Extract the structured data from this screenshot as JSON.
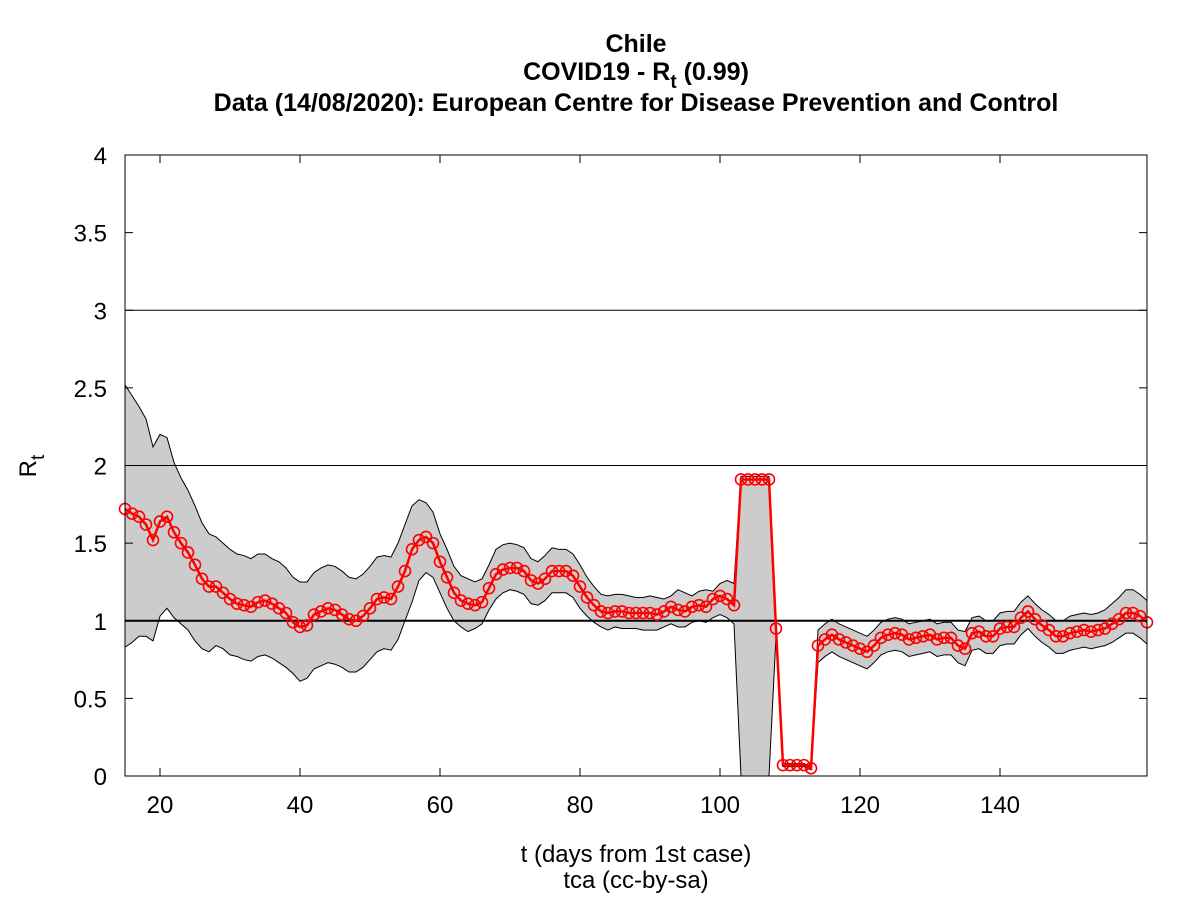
{
  "chart_data": {
    "type": "line",
    "title": "Chile",
    "subtitle": {
      "prefix": "COVID19 - R",
      "sub": "t",
      "suffix": " (0.99)"
    },
    "source": "Data (14/08/2020): European Centre for Disease Prevention and Control",
    "xlabel": "t (days from 1st case)",
    "credit": "tca (cc-by-sa)",
    "ylabel": {
      "main": "R",
      "sub": "t"
    },
    "xlim": [
      15,
      161
    ],
    "ylim": [
      0,
      4
    ],
    "xticks": [
      20,
      40,
      60,
      80,
      100,
      120,
      140
    ],
    "yticks": [
      0,
      0.5,
      1,
      1.5,
      2,
      2.5,
      3,
      3.5,
      4
    ],
    "reference_lines": [
      1,
      2,
      3
    ],
    "band_color": "#cccccc",
    "x": [
      15,
      16,
      17,
      18,
      19,
      20,
      21,
      22,
      23,
      24,
      25,
      26,
      27,
      28,
      29,
      30,
      31,
      32,
      33,
      34,
      35,
      36,
      37,
      38,
      39,
      40,
      41,
      42,
      43,
      44,
      45,
      46,
      47,
      48,
      49,
      50,
      51,
      52,
      53,
      54,
      55,
      56,
      57,
      58,
      59,
      60,
      61,
      62,
      63,
      64,
      65,
      66,
      67,
      68,
      69,
      70,
      71,
      72,
      73,
      74,
      75,
      76,
      77,
      78,
      79,
      80,
      81,
      82,
      83,
      84,
      85,
      86,
      87,
      88,
      89,
      90,
      91,
      92,
      93,
      94,
      95,
      96,
      97,
      98,
      99,
      100,
      101,
      102,
      103,
      104,
      105,
      106,
      107,
      108,
      109,
      110,
      111,
      112,
      113,
      114,
      115,
      116,
      117,
      118,
      119,
      120,
      121,
      122,
      123,
      124,
      125,
      126,
      127,
      128,
      129,
      130,
      131,
      132,
      133,
      134,
      135,
      136,
      137,
      138,
      139,
      140,
      141,
      142,
      143,
      144,
      145,
      146,
      147,
      148,
      149,
      150,
      151,
      152,
      153,
      154,
      155,
      156,
      157,
      158,
      159,
      160,
      161
    ],
    "series": [
      {
        "name": "Rt",
        "color": "#ff0000",
        "values": [
          1.72,
          1.69,
          1.67,
          1.62,
          1.52,
          1.64,
          1.67,
          1.57,
          1.5,
          1.44,
          1.36,
          1.27,
          1.22,
          1.22,
          1.18,
          1.14,
          1.11,
          1.1,
          1.09,
          1.12,
          1.13,
          1.11,
          1.08,
          1.05,
          0.99,
          0.96,
          0.97,
          1.04,
          1.06,
          1.08,
          1.07,
          1.04,
          1.01,
          1.0,
          1.03,
          1.08,
          1.14,
          1.15,
          1.14,
          1.22,
          1.32,
          1.46,
          1.52,
          1.54,
          1.5,
          1.38,
          1.28,
          1.18,
          1.13,
          1.11,
          1.1,
          1.12,
          1.21,
          1.3,
          1.33,
          1.34,
          1.34,
          1.32,
          1.26,
          1.24,
          1.27,
          1.32,
          1.32,
          1.32,
          1.29,
          1.22,
          1.15,
          1.1,
          1.06,
          1.05,
          1.06,
          1.06,
          1.05,
          1.05,
          1.05,
          1.05,
          1.04,
          1.06,
          1.09,
          1.07,
          1.06,
          1.09,
          1.1,
          1.09,
          1.14,
          1.16,
          1.14,
          1.1,
          1.91,
          1.91,
          1.91,
          1.91,
          1.91,
          0.95,
          0.07,
          0.07,
          0.07,
          0.07,
          0.05,
          0.84,
          0.88,
          0.91,
          0.88,
          0.86,
          0.84,
          0.82,
          0.8,
          0.84,
          0.89,
          0.91,
          0.92,
          0.91,
          0.88,
          0.89,
          0.9,
          0.91,
          0.88,
          0.89,
          0.89,
          0.84,
          0.82,
          0.92,
          0.93,
          0.9,
          0.9,
          0.95,
          0.96,
          0.96,
          1.02,
          1.06,
          1.01,
          0.97,
          0.94,
          0.9,
          0.9,
          0.92,
          0.93,
          0.94,
          0.93,
          0.94,
          0.95,
          0.98,
          1.01,
          1.05,
          1.05,
          1.03,
          0.99
        ]
      }
    ],
    "band": {
      "upper": [
        2.52,
        2.45,
        2.38,
        2.3,
        2.12,
        2.2,
        2.18,
        2.02,
        1.92,
        1.84,
        1.74,
        1.63,
        1.56,
        1.54,
        1.5,
        1.46,
        1.43,
        1.42,
        1.4,
        1.43,
        1.43,
        1.4,
        1.38,
        1.34,
        1.28,
        1.25,
        1.25,
        1.31,
        1.34,
        1.36,
        1.35,
        1.32,
        1.28,
        1.27,
        1.3,
        1.35,
        1.41,
        1.42,
        1.41,
        1.5,
        1.62,
        1.74,
        1.78,
        1.76,
        1.7,
        1.56,
        1.46,
        1.35,
        1.29,
        1.27,
        1.25,
        1.27,
        1.36,
        1.46,
        1.49,
        1.5,
        1.49,
        1.47,
        1.4,
        1.38,
        1.42,
        1.47,
        1.46,
        1.46,
        1.43,
        1.36,
        1.28,
        1.22,
        1.17,
        1.16,
        1.17,
        1.17,
        1.16,
        1.15,
        1.15,
        1.16,
        1.15,
        1.14,
        1.16,
        1.2,
        1.18,
        1.16,
        1.19,
        1.2,
        1.19,
        1.24,
        1.26,
        1.24,
        1.93,
        1.93,
        1.93,
        1.93,
        1.93,
        1.0,
        0.08,
        0.08,
        0.08,
        0.08,
        0.06,
        0.94,
        0.98,
        1.01,
        0.98,
        0.96,
        0.94,
        0.92,
        0.9,
        0.94,
        0.99,
        1.01,
        1.02,
        1.01,
        0.98,
        0.99,
        1.0,
        1.01,
        0.98,
        0.99,
        0.99,
        0.94,
        0.93,
        1.02,
        1.03,
        1.0,
        1.0,
        1.05,
        1.06,
        1.06,
        1.12,
        1.16,
        1.11,
        1.07,
        1.04,
        1.0,
        1.0,
        1.03,
        1.04,
        1.05,
        1.04,
        1.05,
        1.07,
        1.11,
        1.15,
        1.2,
        1.2,
        1.17,
        1.13
      ],
      "lower": [
        0.83,
        0.86,
        0.9,
        0.9,
        0.87,
        1.03,
        1.08,
        1.02,
        0.98,
        0.94,
        0.87,
        0.82,
        0.8,
        0.84,
        0.82,
        0.78,
        0.77,
        0.75,
        0.74,
        0.77,
        0.78,
        0.76,
        0.73,
        0.7,
        0.66,
        0.61,
        0.63,
        0.69,
        0.71,
        0.73,
        0.72,
        0.7,
        0.67,
        0.67,
        0.7,
        0.75,
        0.8,
        0.82,
        0.81,
        0.88,
        1.0,
        1.12,
        1.26,
        1.31,
        1.28,
        1.18,
        1.08,
        1.0,
        0.96,
        0.93,
        0.95,
        0.98,
        1.07,
        1.14,
        1.18,
        1.2,
        1.19,
        1.17,
        1.11,
        1.1,
        1.13,
        1.18,
        1.18,
        1.18,
        1.15,
        1.08,
        1.03,
        0.99,
        0.96,
        0.94,
        0.96,
        0.95,
        0.95,
        0.95,
        0.94,
        0.94,
        0.94,
        0.96,
        0.98,
        0.96,
        0.96,
        0.99,
        1.0,
        0.99,
        1.02,
        1.04,
        1.02,
        0.98,
        0,
        0,
        0,
        0,
        0,
        0.9,
        0.06,
        0.06,
        0.06,
        0.06,
        0.04,
        0.73,
        0.77,
        0.8,
        0.77,
        0.75,
        0.73,
        0.71,
        0.69,
        0.73,
        0.78,
        0.8,
        0.81,
        0.8,
        0.77,
        0.78,
        0.79,
        0.8,
        0.77,
        0.78,
        0.78,
        0.73,
        0.71,
        0.81,
        0.82,
        0.79,
        0.79,
        0.84,
        0.85,
        0.85,
        0.91,
        0.95,
        0.9,
        0.86,
        0.83,
        0.79,
        0.79,
        0.81,
        0.82,
        0.83,
        0.82,
        0.83,
        0.84,
        0.86,
        0.89,
        0.92,
        0.92,
        0.89,
        0.85
      ]
    }
  }
}
